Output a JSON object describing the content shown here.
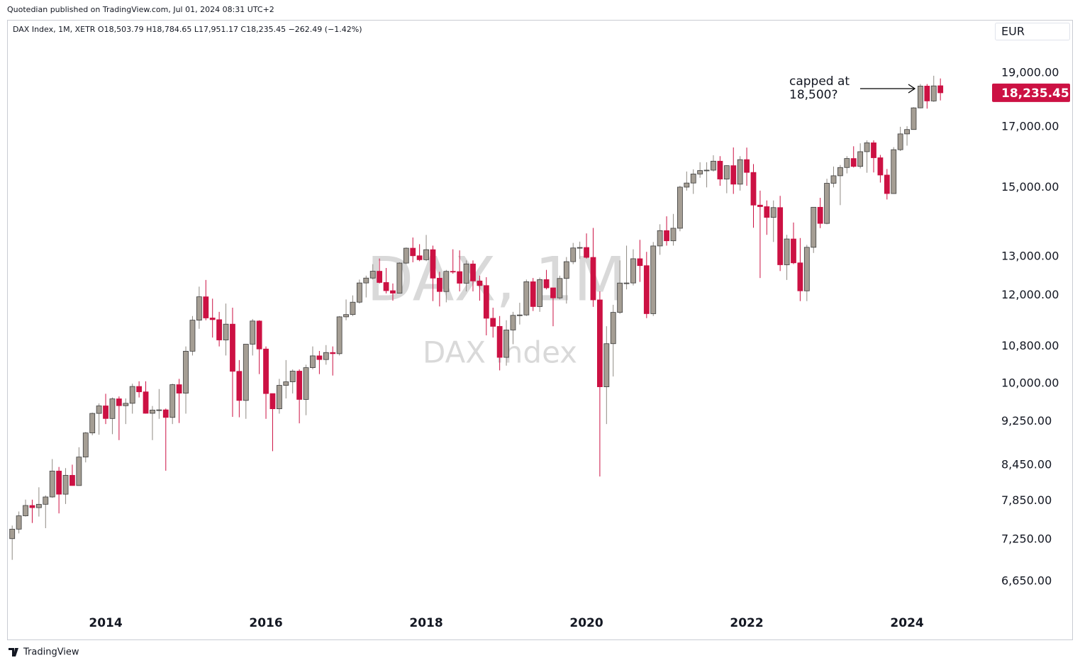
{
  "attribution": "Quotedian published on TradingView.com, Jul 01, 2024 08:31 UTC+2",
  "footer": "TradingView",
  "chart_data": {
    "type": "candlestick",
    "header": "DAX Index, 1M, XETR  O18,503.79  H18,784.65  L17,951.17  C18,235.45  −262.49 (−1.42%)",
    "currency": "EUR",
    "watermark": [
      "DAX, 1M",
      "DAX Index"
    ],
    "annotation": [
      "capped at",
      "18,500?"
    ],
    "last_price": {
      "value": 18235.45,
      "label": "18,235.45"
    },
    "log": true,
    "grid": false,
    "up_color": "#a59e94",
    "down_color": "#cc1143",
    "border_color": "#3c3c3c",
    "ylim": [
      6270,
      21140
    ],
    "yticks": [
      {
        "value": 19000,
        "label": "19,000.00"
      },
      {
        "value": 17000,
        "label": "17,000.00"
      },
      {
        "value": 15000,
        "label": "15,000.00"
      },
      {
        "value": 13000,
        "label": "13,000.00"
      },
      {
        "value": 12000,
        "label": "12,000.00"
      },
      {
        "value": 10800,
        "label": "10,800.00"
      },
      {
        "value": 10000,
        "label": "10,000.00"
      },
      {
        "value": 9250,
        "label": "9,250.00"
      },
      {
        "value": 8450,
        "label": "8,450.00"
      },
      {
        "value": 7850,
        "label": "7,850.00"
      },
      {
        "value": 7250,
        "label": "7,250.00"
      },
      {
        "value": 6650,
        "label": "6,650.00"
      }
    ],
    "categories": [
      null,
      null,
      null,
      null,
      null,
      null,
      null,
      null,
      null,
      null,
      null,
      null,
      null,
      null,
      "2014",
      null,
      null,
      null,
      null,
      null,
      null,
      null,
      null,
      null,
      null,
      null,
      null,
      null,
      null,
      null,
      null,
      null,
      null,
      null,
      null,
      null,
      null,
      null,
      "2016",
      null,
      null,
      null,
      null,
      null,
      null,
      null,
      null,
      null,
      null,
      null,
      null,
      null,
      null,
      null,
      null,
      null,
      null,
      null,
      null,
      null,
      null,
      null,
      "2018",
      null,
      null,
      null,
      null,
      null,
      null,
      null,
      null,
      null,
      null,
      null,
      null,
      null,
      null,
      null,
      null,
      null,
      null,
      null,
      null,
      null,
      null,
      null,
      "2020",
      null,
      null,
      null,
      null,
      null,
      null,
      null,
      null,
      null,
      null,
      null,
      null,
      null,
      null,
      null,
      null,
      null,
      null,
      null,
      null,
      null,
      null,
      null,
      "2022",
      null,
      null,
      null,
      null,
      null,
      null,
      null,
      null,
      null,
      null,
      null,
      null,
      null,
      null,
      null,
      null,
      null,
      null,
      null,
      null,
      null,
      null,
      null,
      "2024",
      null,
      null,
      null,
      null,
      null
    ],
    "open": [
      7261,
      7405,
      7612,
      7776,
      7741,
      7795,
      7914,
      8349,
      7959,
      8276,
      8103,
      8594,
      9033,
      9405,
      9552,
      9306,
      9692,
      9556,
      9603,
      9943,
      9833,
      9407,
      9470,
      9474,
      9327,
      9980,
      9806,
      10694,
      11402,
      11966,
      11454,
      11414,
      10945,
      11309,
      10259,
      9660,
      10850,
      11382,
      10743,
      9798,
      9495,
      9966,
      10039,
      10263,
      9680,
      10337,
      10592,
      10511,
      10665,
      10640,
      11481,
      11535,
      11834,
      12313,
      12438,
      12615,
      12325,
      12118,
      12056,
      12829,
      13230,
      13024,
      12918,
      13189,
      12436,
      12097,
      12612,
      12605,
      12306,
      12806,
      12364,
      12247,
      11447,
      11257,
      10559,
      11173,
      11516,
      11526,
      12344,
      11727,
      12399,
      12189,
      11939,
      12428,
      12867,
      13236,
      13249,
      12981,
      11890,
      9936,
      10862,
      11587,
      12311,
      12313,
      12945,
      12761,
      11556,
      13291,
      13719,
      13433,
      13786,
      15008,
      15136,
      15421,
      15531,
      15544,
      15835,
      15260,
      15689,
      15100,
      15885,
      15471,
      14461,
      14415,
      14098,
      14388,
      12784,
      13484,
      12835,
      12114,
      13254,
      14397,
      13924,
      15128,
      15365,
      15629,
      15922,
      15664,
      16148,
      16447,
      15947,
      15387,
      14810,
      16215,
      16752,
      16904,
      17678,
      18492,
      17932,
      18503.79
    ],
    "high": [
      7460,
      7680,
      7871,
      7870,
      8074,
      7940,
      8558,
      8420,
      8400,
      8460,
      8770,
      9050,
      9420,
      9600,
      9794,
      9720,
      9740,
      9700,
      10000,
      10050,
      10050,
      9550,
      9890,
      9500,
      10000,
      10100,
      10800,
      11500,
      12220,
      12390,
      11920,
      11600,
      11800,
      11700,
      10500,
      10850,
      11430,
      11400,
      10800,
      9800,
      10100,
      10500,
      10300,
      10300,
      10400,
      10800,
      10700,
      10830,
      10800,
      11500,
      11900,
      12000,
      12400,
      12500,
      12800,
      12950,
      12700,
      12300,
      12850,
      13250,
      13525,
      13340,
      13597,
      13300,
      12600,
      12650,
      13200,
      13170,
      12900,
      12900,
      12500,
      12460,
      11700,
      11500,
      11400,
      11600,
      11820,
      12400,
      12440,
      12450,
      12650,
      12190,
      12500,
      12990,
      13375,
      13410,
      13640,
      13795,
      12100,
      11260,
      11770,
      12900,
      13300,
      13200,
      13460,
      13130,
      13400,
      13900,
      14130,
      14200,
      15050,
      15500,
      15570,
      15800,
      15800,
      16030,
      16000,
      15700,
      16290,
      16000,
      16285,
      15740,
      14900,
      14600,
      14600,
      14740,
      13600,
      13950,
      13510,
      13320,
      14400,
      14680,
      15270,
      15660,
      15710,
      16000,
      16330,
      16430,
      16530,
      16530,
      16040,
      15580,
      16300,
      17000,
      17020,
      17700,
      18570,
      18570,
      18890,
      18784.65
    ],
    "low": [
      6950,
      7340,
      7600,
      7500,
      7600,
      7420,
      7900,
      7650,
      7800,
      8100,
      8100,
      8500,
      8990,
      9000,
      9200,
      9010,
      8900,
      9200,
      9400,
      9720,
      9400,
      8900,
      9300,
      8355,
      9200,
      9220,
      9400,
      10600,
      11200,
      11400,
      11000,
      10800,
      10600,
      9338,
      9330,
      9300,
      10600,
      10200,
      9300,
      8699,
      9400,
      9700,
      9800,
      9214,
      9370,
      10300,
      10200,
      10400,
      10170,
      10600,
      11400,
      11500,
      11800,
      11950,
      12400,
      12300,
      12050,
      11870,
      12050,
      12800,
      12850,
      12880,
      12880,
      11860,
      11730,
      11830,
      12550,
      12100,
      12100,
      12100,
      11870,
      11050,
      11000,
      10279,
      10380,
      10850,
      11300,
      11500,
      11620,
      11600,
      12150,
      11260,
      11900,
      11800,
      12800,
      12940,
      12950,
      11720,
      8256,
      9200,
      10150,
      11550,
      12150,
      12250,
      12340,
      11450,
      11500,
      13050,
      13300,
      13300,
      13700,
      14900,
      14800,
      15300,
      15000,
      15500,
      15050,
      14820,
      14800,
      14900,
      15050,
      13800,
      12439,
      13600,
      13400,
      12620,
      12390,
      12800,
      11860,
      11860,
      13100,
      13790,
      13900,
      15000,
      14460,
      15440,
      15630,
      15600,
      15460,
      15470,
      15150,
      14630,
      14800,
      16170,
      16350,
      16900,
      17660,
      17650,
      17900,
      17951.17
    ],
    "close": [
      7405,
      7612,
      7776,
      7741,
      7795,
      7914,
      8349,
      7959,
      8276,
      8103,
      8594,
      9033,
      9405,
      9552,
      9306,
      9692,
      9556,
      9603,
      9943,
      9833,
      9407,
      9470,
      9474,
      9327,
      9980,
      9806,
      10694,
      11402,
      11966,
      11454,
      11414,
      10945,
      11309,
      10259,
      9660,
      10850,
      11382,
      10743,
      9798,
      9495,
      9966,
      10039,
      10263,
      9680,
      10337,
      10592,
      10511,
      10665,
      10640,
      11481,
      11535,
      11834,
      12313,
      12438,
      12615,
      12325,
      12118,
      12056,
      12829,
      13230,
      13024,
      12918,
      13189,
      12436,
      12097,
      12612,
      12605,
      12306,
      12806,
      12364,
      12247,
      11447,
      11257,
      10559,
      11173,
      11516,
      11526,
      12344,
      11727,
      12399,
      12189,
      11939,
      12428,
      12867,
      13236,
      13249,
      12981,
      11890,
      9936,
      10862,
      11587,
      12311,
      12313,
      12945,
      12761,
      11556,
      13291,
      13719,
      13433,
      13786,
      15008,
      15136,
      15421,
      15531,
      15544,
      15835,
      15260,
      15689,
      15100,
      15885,
      15471,
      14461,
      14415,
      14098,
      14388,
      12784,
      13484,
      12835,
      12114,
      13254,
      14397,
      13924,
      15128,
      15365,
      15629,
      15922,
      15664,
      16148,
      16447,
      15947,
      15387,
      14810,
      16215,
      16752,
      16904,
      17678,
      18492,
      17932,
      18498,
      18235.45
    ]
  }
}
